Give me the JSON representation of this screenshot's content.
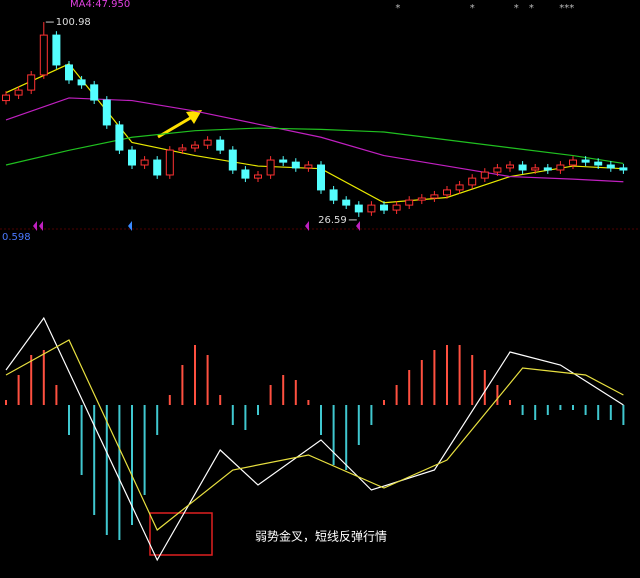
{
  "chart_data": [
    {
      "type": "candlestick",
      "header": "MA4:47.950",
      "ylim": [
        23.5,
        109.4
      ],
      "up_color": "#ff3232",
      "down_color": "#54ffff",
      "open": [
        71,
        73.1,
        75.0,
        80.8,
        96,
        84.6,
        78.9,
        77,
        71.2,
        61.7,
        52.1,
        46.4,
        48.3,
        42.6,
        52.1,
        52.9,
        54,
        55.9,
        52.1,
        44.5,
        41.4,
        42.6,
        48.3,
        47.5,
        45.3,
        46.4,
        36.9,
        33.0,
        31.1,
        28.5,
        31.1,
        29.2,
        31.1,
        33.0,
        33.8,
        35.0,
        36.9,
        38.8,
        41.4,
        43.7,
        45.3,
        46.4,
        44.5,
        45.3,
        44.5,
        46.4,
        48.3,
        47.5,
        46.4,
        45.3
      ],
      "close": [
        73.1,
        75.0,
        80.8,
        96,
        84.6,
        78.9,
        77,
        71.2,
        61.7,
        52.1,
        46.4,
        48.3,
        42.6,
        52.1,
        52.9,
        54,
        55.9,
        52.1,
        44.5,
        41.4,
        42.6,
        48.3,
        47.5,
        45.3,
        46.4,
        36.9,
        33.0,
        31.1,
        28.5,
        31.1,
        29.2,
        31.1,
        33.0,
        33.8,
        35.0,
        36.9,
        38.8,
        41.4,
        43.7,
        45.3,
        46.4,
        44.5,
        45.3,
        44.5,
        46.4,
        48.3,
        47.5,
        46.4,
        45.3,
        44.5
      ],
      "high": [
        74.6,
        76.5,
        82.3,
        100.98,
        97.5,
        86.1,
        80.4,
        78.5,
        72.7,
        63.2,
        53.6,
        49.8,
        49.8,
        53.6,
        54.4,
        55.5,
        57.4,
        57.4,
        53.6,
        46,
        44.1,
        49.8,
        49.8,
        49,
        47.9,
        47.9,
        38.4,
        34.5,
        32.6,
        32.6,
        32.6,
        32.6,
        34.5,
        35.3,
        36.5,
        38.4,
        40.3,
        42.9,
        45.2,
        46.8,
        47.9,
        47.9,
        46.8,
        46.8,
        47.9,
        49.8,
        49.8,
        49,
        47.9,
        46.8
      ],
      "low": [
        69.5,
        71.6,
        73.5,
        79.3,
        83.1,
        77.4,
        75.5,
        69.7,
        60.2,
        50.6,
        44.9,
        44.9,
        41.1,
        41.1,
        50.6,
        51.4,
        52.5,
        50.6,
        43,
        39.9,
        39.9,
        41.1,
        46,
        43.8,
        43.8,
        35.4,
        31.5,
        29.6,
        26.59,
        27,
        27.7,
        27.7,
        29.6,
        31.5,
        32.3,
        33.5,
        35.4,
        37.3,
        39.9,
        42.2,
        43.8,
        43,
        43,
        43,
        43,
        44.9,
        46,
        44.9,
        43.8,
        43
      ],
      "moving_averages": [
        {
          "color": "#e8e800",
          "x": [
            0,
            5,
            10,
            15,
            20,
            25,
            30,
            35,
            40,
            45,
            49
          ],
          "values": [
            74,
            85,
            55,
            50,
            46,
            45,
            32,
            34,
            42,
            46,
            45
          ]
        },
        {
          "color": "#c020c0",
          "x": [
            0,
            5,
            10,
            15,
            20,
            25,
            30,
            35,
            40,
            45,
            49
          ],
          "values": [
            63.6,
            72,
            71,
            67,
            62,
            57,
            50,
            46,
            42,
            41,
            40
          ]
        },
        {
          "color": "#20c020",
          "x": [
            0,
            5,
            10,
            15,
            20,
            25,
            30,
            35,
            40,
            45,
            49
          ],
          "values": [
            46.4,
            52,
            57,
            59.5,
            60.5,
            60,
            59,
            56,
            53,
            50,
            47
          ]
        }
      ],
      "annotations": [
        {
          "text": "100.98",
          "value": 100.98
        },
        {
          "text": "26.59",
          "value": 26.59
        }
      ],
      "markers": [
        {
          "label": "*",
          "x": 31.1
        },
        {
          "label": "*",
          "x": 37
        },
        {
          "label": "*",
          "x": 40.5
        },
        {
          "label": "*",
          "x": 41.7
        },
        {
          "label": "***",
          "x": 44.5
        }
      ]
    },
    {
      "type": "macd",
      "scale_label": "0.598",
      "ylim": [
        -17.3,
        17.3
      ],
      "note": "弱势金叉，短线反弹行情",
      "pos_color": "#ff5040",
      "neg_color": "#40c8d0",
      "histogram": [
        0.5,
        3,
        5,
        5.5,
        2,
        -3,
        -7,
        -11,
        -13,
        -13.5,
        -12,
        -9,
        -3,
        1,
        4,
        6,
        5,
        1,
        -2,
        -2.5,
        -1,
        2,
        3,
        2.5,
        0.5,
        -3,
        -6,
        -6.5,
        -4,
        -2,
        0.5,
        2,
        3.5,
        4.5,
        5.5,
        6,
        6,
        5,
        3.5,
        2,
        0.5,
        -1,
        -1.5,
        -1,
        -0.5,
        -0.5,
        -1,
        -1.5,
        -1.5,
        -2
      ],
      "lines": [
        {
          "color": "#ffffff",
          "x": [
            0,
            3,
            12,
            17,
            20,
            25,
            29,
            34,
            40,
            44,
            49
          ],
          "values": [
            3.5,
            8.7,
            -15.5,
            -4.5,
            -8,
            -3.5,
            -8.5,
            -6.5,
            5.3,
            4,
            0
          ]
        },
        {
          "color": "#e8e040",
          "x": [
            0,
            5,
            12,
            18,
            24,
            30,
            35,
            41,
            46,
            49
          ],
          "values": [
            3,
            6.5,
            -12.5,
            -6.5,
            -5,
            -8.3,
            -5.5,
            3.7,
            3,
            1
          ]
        }
      ]
    }
  ]
}
